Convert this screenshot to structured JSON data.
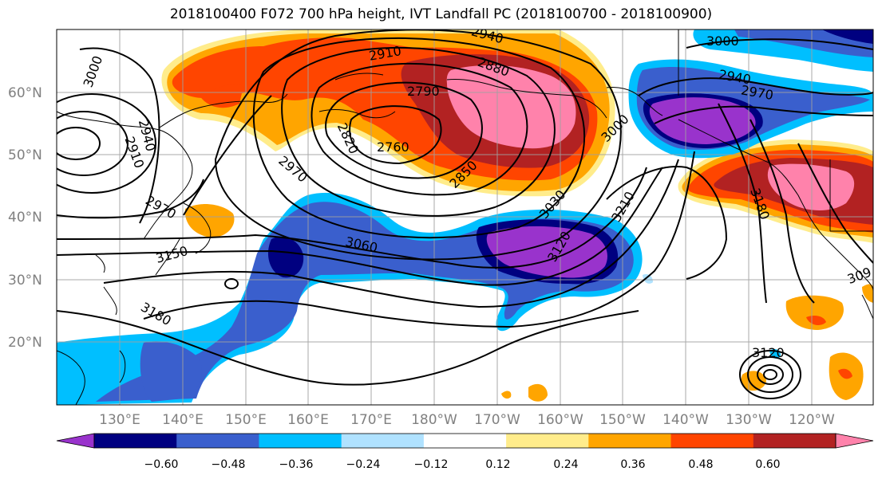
{
  "title": "2018100400 F072 700 hPa height, IVT Landfall PC (2018100700 - 2018100900)",
  "latitude_labels": [
    "60°N",
    "50°N",
    "40°N",
    "30°N",
    "20°N"
  ],
  "longitude_labels": [
    "130°E",
    "140°E",
    "150°E",
    "160°E",
    "170°E",
    "180°W",
    "170°W",
    "160°W",
    "150°W",
    "140°W",
    "130°W",
    "120°W"
  ],
  "contour_labels": [
    "3000",
    "2940",
    "2910",
    "2880",
    "2790",
    "2760",
    "2820",
    "2850",
    "2970",
    "3030",
    "3060",
    "3120",
    "3210",
    "3180",
    "3150",
    "2910",
    "2940",
    "2970",
    "3000",
    "2940",
    "2970",
    "3180",
    "3120",
    "309"
  ],
  "colorbar": {
    "tick_labels": [
      "−0.60",
      "−0.48",
      "−0.36",
      "−0.24",
      "−0.12",
      "0.12",
      "0.24",
      "0.36",
      "0.48",
      "0.60"
    ],
    "colors": [
      "#9933cc",
      "#000080",
      "#3a5fcd",
      "#00bfff",
      "#b0e2ff",
      "#ffffff",
      "#ffec8b",
      "#ffa500",
      "#ff4500",
      "#b22222",
      "#ff82ab"
    ]
  }
}
